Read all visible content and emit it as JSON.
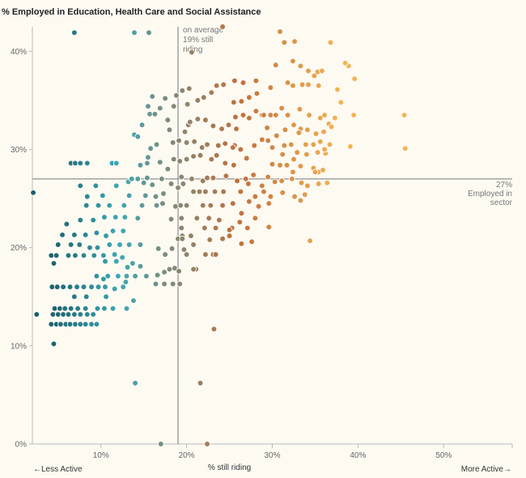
{
  "chart_data": {
    "type": "scatter",
    "title": "% Employed in Education, Health Care and Social Assistance",
    "xlabel": "% still riding",
    "ylabel": "% Employed in Education, Health Care and Social Assistance",
    "xlim": [
      2,
      58
    ],
    "ylim": [
      0,
      42.5
    ],
    "x_ticks": [
      10,
      20,
      30,
      40,
      50
    ],
    "x_tick_labels": [
      "10%",
      "20%",
      "30%",
      "40%",
      "50%"
    ],
    "y_ticks": [
      0,
      10,
      20,
      30,
      40
    ],
    "y_tick_labels": [
      "0%",
      "10%",
      "20%",
      "30%",
      "40%"
    ],
    "x_left_label": "←Less Active",
    "x_right_label": "More Active→",
    "reference_lines": {
      "vertical": {
        "x": 19,
        "label": [
          "on average",
          "19% still",
          "riding"
        ]
      },
      "horizontal": {
        "y": 27,
        "label": [
          "27%",
          "Employed in",
          "sector"
        ]
      }
    },
    "color_scale": {
      "by": "x",
      "stops": [
        "#1c5f6b",
        "#3aa9b5",
        "#7f8a7c",
        "#c0703c",
        "#f5b456"
      ]
    },
    "grid": false,
    "points": [
      [
        2.1,
        25.6
      ],
      [
        2.5,
        13.2
      ],
      [
        4.5,
        10.2
      ],
      [
        4.2,
        12.2
      ],
      [
        4.8,
        12.2
      ],
      [
        5.3,
        12.2
      ],
      [
        5.9,
        12.2
      ],
      [
        6.4,
        12.2
      ],
      [
        7.0,
        12.2
      ],
      [
        7.6,
        12.2
      ],
      [
        8.2,
        12.2
      ],
      [
        8.9,
        12.2
      ],
      [
        9.5,
        12.2
      ],
      [
        4.4,
        13.2
      ],
      [
        5.0,
        13.2
      ],
      [
        5.6,
        13.2
      ],
      [
        6.2,
        13.2
      ],
      [
        6.9,
        13.2
      ],
      [
        7.6,
        13.2
      ],
      [
        8.4,
        13.2
      ],
      [
        9.1,
        13.2
      ],
      [
        4.6,
        13.8
      ],
      [
        5.2,
        13.8
      ],
      [
        5.8,
        13.8
      ],
      [
        6.5,
        13.8
      ],
      [
        7.3,
        13.8
      ],
      [
        8.2,
        13.8
      ],
      [
        9.6,
        13.8
      ],
      [
        10.4,
        13.8
      ],
      [
        11.4,
        13.8
      ],
      [
        13.0,
        13.8
      ],
      [
        4.3,
        16.0
      ],
      [
        4.9,
        16.0
      ],
      [
        5.6,
        16.0
      ],
      [
        6.4,
        16.0
      ],
      [
        7.2,
        16.0
      ],
      [
        8.0,
        16.0
      ],
      [
        8.9,
        16.0
      ],
      [
        9.7,
        16.0
      ],
      [
        10.5,
        16.0
      ],
      [
        12.6,
        16.0
      ],
      [
        4.2,
        19.2
      ],
      [
        4.8,
        19.2
      ],
      [
        4.5,
        18.4
      ],
      [
        6.2,
        19.2
      ],
      [
        7.0,
        19.2
      ],
      [
        8.0,
        19.2
      ],
      [
        9.2,
        19.2
      ],
      [
        10.3,
        19.2
      ],
      [
        11.8,
        18.6
      ],
      [
        13.1,
        18.0
      ],
      [
        5.0,
        20.3
      ],
      [
        6.5,
        20.3
      ],
      [
        7.5,
        20.3
      ],
      [
        8.7,
        20.0
      ],
      [
        9.6,
        20.0
      ],
      [
        11.0,
        20.3
      ],
      [
        12.2,
        20.3
      ],
      [
        13.3,
        20.3
      ],
      [
        14.6,
        20.3
      ],
      [
        5.5,
        21.3
      ],
      [
        6.9,
        21.3
      ],
      [
        8.2,
        21.3
      ],
      [
        9.5,
        21.5
      ],
      [
        10.6,
        21.2
      ],
      [
        11.4,
        21.7
      ],
      [
        12.6,
        21.7
      ],
      [
        6.0,
        22.4
      ],
      [
        7.6,
        22.8
      ],
      [
        9.1,
        22.8
      ],
      [
        10.4,
        23.1
      ],
      [
        11.7,
        23.1
      ],
      [
        12.8,
        23.1
      ],
      [
        14.3,
        23.0
      ],
      [
        8.3,
        24.3
      ],
      [
        9.7,
        24.3
      ],
      [
        11.0,
        24.3
      ],
      [
        12.7,
        24.3
      ],
      [
        14.8,
        24.3
      ],
      [
        8.4,
        25.2
      ],
      [
        10.2,
        25.3
      ],
      [
        13.3,
        25.3
      ],
      [
        15.2,
        25.3
      ],
      [
        7.6,
        26.3
      ],
      [
        9.4,
        26.3
      ],
      [
        11.8,
        26.3
      ],
      [
        13.2,
        26.7
      ],
      [
        15.0,
        26.6
      ],
      [
        16.0,
        26.4
      ],
      [
        6.5,
        28.6
      ],
      [
        7.0,
        28.6
      ],
      [
        7.6,
        28.6
      ],
      [
        8.4,
        28.6
      ],
      [
        11.3,
        28.6
      ],
      [
        11.8,
        28.6
      ],
      [
        14.6,
        28.4
      ],
      [
        15.4,
        28.6
      ],
      [
        13.6,
        27.0
      ],
      [
        14.3,
        27.0
      ],
      [
        15.4,
        27.1
      ],
      [
        17.1,
        27.0
      ],
      [
        13.9,
        31.5
      ],
      [
        14.3,
        31.3
      ],
      [
        15.5,
        29.2
      ],
      [
        16.5,
        30.5
      ],
      [
        15.8,
        30.1
      ],
      [
        14.8,
        32.5
      ],
      [
        15.7,
        33.6
      ],
      [
        16.3,
        33.6
      ],
      [
        16.9,
        34.2
      ],
      [
        17.5,
        35.2
      ],
      [
        17.8,
        33.0
      ],
      [
        18.5,
        34.4
      ],
      [
        18.0,
        32.0
      ],
      [
        15.5,
        34.4
      ],
      [
        16.0,
        35.4
      ],
      [
        6.9,
        41.9
      ],
      [
        13.9,
        41.9
      ],
      [
        15.6,
        41.9
      ],
      [
        14.0,
        6.2
      ],
      [
        17.0,
        0.0
      ],
      [
        10.5,
        18.6
      ],
      [
        11.6,
        19.3
      ],
      [
        12.5,
        19.0
      ],
      [
        13.7,
        18.4
      ],
      [
        14.6,
        18.1
      ],
      [
        9.5,
        17.1
      ],
      [
        10.8,
        17.1
      ],
      [
        12.0,
        17.1
      ],
      [
        13.0,
        17.1
      ],
      [
        14.0,
        17.1
      ],
      [
        15.3,
        17.1
      ],
      [
        6.9,
        15.0
      ],
      [
        8.3,
        15.0
      ],
      [
        10.6,
        15.0
      ],
      [
        13.8,
        14.6
      ],
      [
        10.3,
        16.8
      ],
      [
        11.6,
        15.8
      ],
      [
        12.9,
        16.5
      ],
      [
        16.4,
        16.3
      ],
      [
        17.4,
        16.3
      ],
      [
        18.4,
        16.3
      ],
      [
        19.2,
        16.3
      ],
      [
        16.6,
        17.2
      ],
      [
        17.4,
        17.5
      ],
      [
        18.0,
        17.8
      ],
      [
        18.6,
        17.9
      ],
      [
        19.1,
        17.6
      ],
      [
        16.7,
        19.9
      ],
      [
        17.5,
        19.3
      ],
      [
        18.3,
        19.9
      ],
      [
        19.0,
        20.9
      ],
      [
        19.5,
        21.2
      ],
      [
        16.5,
        24.3
      ],
      [
        17.2,
        24.5
      ],
      [
        18.2,
        22.9
      ],
      [
        18.7,
        24.2
      ],
      [
        16.4,
        25.2
      ],
      [
        17.3,
        25.5
      ],
      [
        18.2,
        26.5
      ],
      [
        19.0,
        26.1
      ],
      [
        19.6,
        26.5
      ],
      [
        16.9,
        28.7
      ],
      [
        17.8,
        28.0
      ],
      [
        18.5,
        29.0
      ],
      [
        19.2,
        28.8
      ],
      [
        18.4,
        30.7
      ],
      [
        19.1,
        30.9
      ],
      [
        19.8,
        31.8
      ],
      [
        20.2,
        32.5
      ],
      [
        18.8,
        35.5
      ],
      [
        19.5,
        36.0
      ],
      [
        20.3,
        36.2
      ],
      [
        20.1,
        34.6
      ],
      [
        21.3,
        35.0
      ],
      [
        22.0,
        35.3
      ],
      [
        22.9,
        35.8
      ],
      [
        23.5,
        36.5
      ],
      [
        24.3,
        36.6
      ],
      [
        20.4,
        32.8
      ],
      [
        21.3,
        33.1
      ],
      [
        22.2,
        33.0
      ],
      [
        23.1,
        32.4
      ],
      [
        24.1,
        32.1
      ],
      [
        24.9,
        32.5
      ],
      [
        25.8,
        32.1
      ],
      [
        20.0,
        30.7
      ],
      [
        20.9,
        30.8
      ],
      [
        21.8,
        30.2
      ],
      [
        22.4,
        30.5
      ],
      [
        23.7,
        30.4
      ],
      [
        24.5,
        30.6
      ],
      [
        25.6,
        30.4
      ],
      [
        20.0,
        29.0
      ],
      [
        20.8,
        29.3
      ],
      [
        21.6,
        29.4
      ],
      [
        22.9,
        29.0
      ],
      [
        23.5,
        29.4
      ],
      [
        24.5,
        28.6
      ],
      [
        25.5,
        28.4
      ],
      [
        19.4,
        27.2
      ],
      [
        20.6,
        27.0
      ],
      [
        21.9,
        26.8
      ],
      [
        22.4,
        27.1
      ],
      [
        23.1,
        27.1
      ],
      [
        24.6,
        27.3
      ],
      [
        20.8,
        25.7
      ],
      [
        21.5,
        25.7
      ],
      [
        22.2,
        25.7
      ],
      [
        23.3,
        25.7
      ],
      [
        24.3,
        25.7
      ],
      [
        19.3,
        24.3
      ],
      [
        20.0,
        24.3
      ],
      [
        21.9,
        24.3
      ],
      [
        22.8,
        24.3
      ],
      [
        24.2,
        24.3
      ],
      [
        19.4,
        23.0
      ],
      [
        21.2,
        23.0
      ],
      [
        22.6,
        23.0
      ],
      [
        23.8,
        22.8
      ],
      [
        19.4,
        22.0
      ],
      [
        20.5,
        21.2
      ],
      [
        22.1,
        22.0
      ],
      [
        23.4,
        22.0
      ],
      [
        25.3,
        22.0
      ],
      [
        19.5,
        20.9
      ],
      [
        20.8,
        20.3
      ],
      [
        22.7,
        20.8
      ],
      [
        24.2,
        20.9
      ],
      [
        25.0,
        21.2
      ],
      [
        21.1,
        17.8
      ],
      [
        20.8,
        17.8
      ],
      [
        22.2,
        19.3
      ],
      [
        23.1,
        19.3
      ],
      [
        23.4,
        19.3
      ],
      [
        20.0,
        19.3
      ],
      [
        19.7,
        19.8
      ],
      [
        20.6,
        39.9
      ],
      [
        24.2,
        42.5
      ],
      [
        25.6,
        37.0
      ],
      [
        26.6,
        36.8
      ],
      [
        23.2,
        11.7
      ],
      [
        21.6,
        6.2
      ],
      [
        22.4,
        0.0
      ],
      [
        25.4,
        30.2
      ],
      [
        26.3,
        30.0
      ],
      [
        27.0,
        29.1
      ],
      [
        27.9,
        30.4
      ],
      [
        25.7,
        33.3
      ],
      [
        26.6,
        33.5
      ],
      [
        27.3,
        33.2
      ],
      [
        28.1,
        33.9
      ],
      [
        28.8,
        33.5
      ],
      [
        29.4,
        32.2
      ],
      [
        25.5,
        34.8
      ],
      [
        26.4,
        34.9
      ],
      [
        27.3,
        35.3
      ],
      [
        28.2,
        35.7
      ],
      [
        25.9,
        26.8
      ],
      [
        26.9,
        27.0
      ],
      [
        27.8,
        27.4
      ],
      [
        28.8,
        26.3
      ],
      [
        25.4,
        24.5
      ],
      [
        26.3,
        25.7
      ],
      [
        27.2,
        26.5
      ],
      [
        28.0,
        25.2
      ],
      [
        29.0,
        25.7
      ],
      [
        26.4,
        23.5
      ],
      [
        27.3,
        24.7
      ],
      [
        28.4,
        24.2
      ],
      [
        29.6,
        24.5
      ],
      [
        25.0,
        21.8
      ],
      [
        26.2,
        22.6
      ],
      [
        27.1,
        22.0
      ],
      [
        28.0,
        23.0
      ],
      [
        26.4,
        20.4
      ],
      [
        27.6,
        20.6
      ],
      [
        29.6,
        22.1
      ],
      [
        28.1,
        37.0
      ],
      [
        29.8,
        36.3
      ],
      [
        30.4,
        38.6
      ],
      [
        30.9,
        42.0
      ],
      [
        31.4,
        40.9
      ],
      [
        32.6,
        41.0
      ],
      [
        29.0,
        33.5
      ],
      [
        29.8,
        33.5
      ],
      [
        30.4,
        33.5
      ],
      [
        31.1,
        34.2
      ],
      [
        31.8,
        33.5
      ],
      [
        28.8,
        31.0
      ],
      [
        29.5,
        30.9
      ],
      [
        30.5,
        31.4
      ],
      [
        31.4,
        30.4
      ],
      [
        32.2,
        30.5
      ],
      [
        32.9,
        29.7
      ],
      [
        30.0,
        28.5
      ],
      [
        30.9,
        28.4
      ],
      [
        31.7,
        28.4
      ],
      [
        32.4,
        27.7
      ],
      [
        33.3,
        28.3
      ],
      [
        29.5,
        27.2
      ],
      [
        30.3,
        26.7
      ],
      [
        31.1,
        26.8
      ],
      [
        32.3,
        27.0
      ],
      [
        33.4,
        26.6
      ],
      [
        29.8,
        25.2
      ],
      [
        31.2,
        25.6
      ],
      [
        32.6,
        25.2
      ],
      [
        33.8,
        25.4
      ],
      [
        30.0,
        30.2
      ],
      [
        31.2,
        29.5
      ],
      [
        32.5,
        29.0
      ],
      [
        31.5,
        32.0
      ],
      [
        32.5,
        32.5
      ],
      [
        33.3,
        32.1
      ],
      [
        31.8,
        36.8
      ],
      [
        32.4,
        36.5
      ],
      [
        33.5,
        36.6
      ],
      [
        34.2,
        36.6
      ],
      [
        35.4,
        36.5
      ],
      [
        32.4,
        39.0
      ],
      [
        33.3,
        38.5
      ],
      [
        34.2,
        38.0
      ],
      [
        34.9,
        37.5
      ],
      [
        35.3,
        37.9
      ],
      [
        35.8,
        38.0
      ],
      [
        33.2,
        34.1
      ],
      [
        34.3,
        33.5
      ],
      [
        35.6,
        33.2
      ],
      [
        36.6,
        32.6
      ],
      [
        33.1,
        31.7
      ],
      [
        34.1,
        32.0
      ],
      [
        35.1,
        31.6
      ],
      [
        36.0,
        31.8
      ],
      [
        36.9,
        32.3
      ],
      [
        33.9,
        30.5
      ],
      [
        34.8,
        30.5
      ],
      [
        35.6,
        30.8
      ],
      [
        34.0,
        29.5
      ],
      [
        35.3,
        29.7
      ],
      [
        36.2,
        29.6
      ],
      [
        34.8,
        28.1
      ],
      [
        35.4,
        27.7
      ],
      [
        35.9,
        27.9
      ],
      [
        34.1,
        26.3
      ],
      [
        35.4,
        26.5
      ],
      [
        36.4,
        26.6
      ],
      [
        35.0,
        27.7
      ],
      [
        36.1,
        30.0
      ],
      [
        36.7,
        30.5
      ],
      [
        36.1,
        33.5
      ],
      [
        37.3,
        33.2
      ],
      [
        37.6,
        36.1
      ],
      [
        38.0,
        34.8
      ],
      [
        38.9,
        38.5
      ],
      [
        39.6,
        37.2
      ],
      [
        36.8,
        40.9
      ],
      [
        38.5,
        38.8
      ],
      [
        39.5,
        33.5
      ],
      [
        39.1,
        30.3
      ],
      [
        34.4,
        20.7
      ],
      [
        33.3,
        24.8
      ],
      [
        45.4,
        33.5
      ],
      [
        45.5,
        30.1
      ]
    ]
  }
}
